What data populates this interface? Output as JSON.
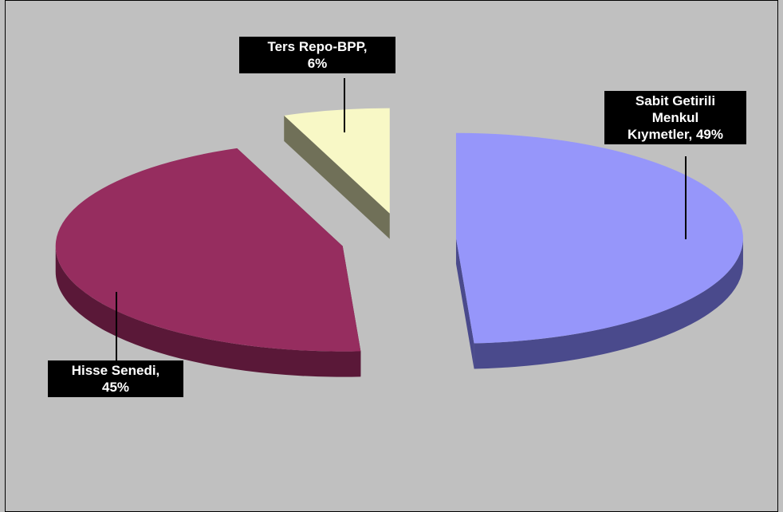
{
  "chart_data": {
    "type": "pie",
    "style": "3d-exploded",
    "slices": [
      {
        "name": "Sabit Getirili Menkul Kıymetler",
        "value": 49,
        "label_lines": [
          "Sabit Getirili",
          "Menkul",
          "Kıymetler, 49%"
        ],
        "top_color": "#9696fa",
        "side_color": "#4a4a8c"
      },
      {
        "name": "Hisse Senedi",
        "value": 45,
        "label_lines": [
          "Hisse Senedi,",
          "45%"
        ],
        "top_color": "#962d5f",
        "side_color": "#5a1838"
      },
      {
        "name": "Ters Repo-BPP",
        "value": 6,
        "label_lines": [
          "Ters Repo-BPP,",
          "6%"
        ],
        "top_color": "#f8f8c6",
        "side_color": "#707058"
      }
    ],
    "legend": "none",
    "label_style": "black boxes with white text and leader lines"
  },
  "colors": {
    "background": "#c0c0c0",
    "label_background": "#000000",
    "label_text": "#ffffff"
  }
}
